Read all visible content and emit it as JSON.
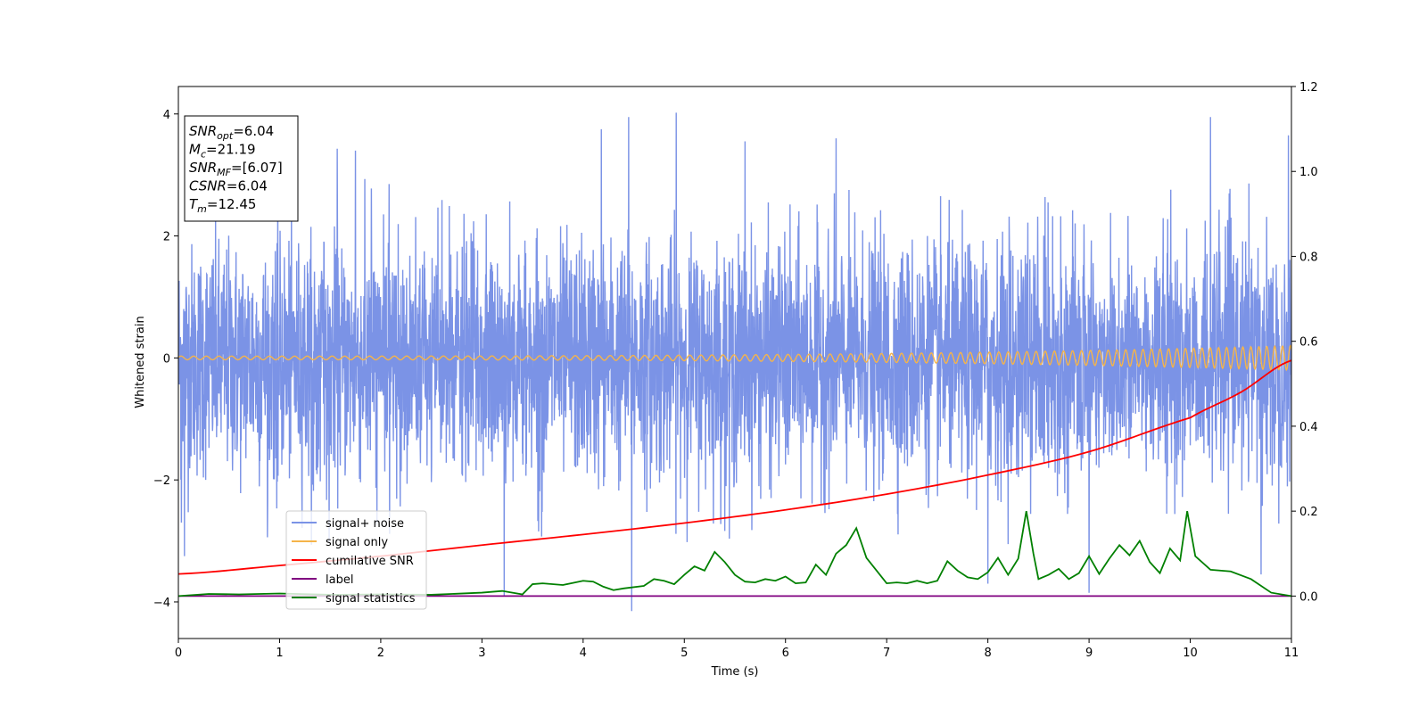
{
  "chart_data": {
    "type": "line",
    "xlabel": "Time (s)",
    "ylabel_left": "Whitened strain",
    "ylabel_right": "",
    "xlim": [
      0,
      11
    ],
    "ylim_left": [
      -4.6,
      4.45
    ],
    "ylim_right": [
      -0.1,
      1.2
    ],
    "x_ticks": [
      0,
      1,
      2,
      3,
      4,
      5,
      6,
      7,
      8,
      9,
      10,
      11
    ],
    "y_ticks_left": [
      -4,
      -2,
      0,
      2,
      4
    ],
    "y_ticks_right": [
      0.0,
      0.2,
      0.4,
      0.6,
      0.8,
      1.0,
      1.2
    ],
    "y_tick_labels_left": [
      "−4",
      "−2",
      "0",
      "2",
      "4"
    ],
    "y_tick_labels_right": [
      "0.0",
      "0.2",
      "0.4",
      "0.6",
      "0.8",
      "1.0",
      "1.2"
    ],
    "grid": false,
    "legend_position": "lower-left",
    "info_box": {
      "position": "top-left",
      "lines": [
        {
          "base": "SNR",
          "sub": "opt",
          "value": "=6.04"
        },
        {
          "base": "M",
          "sub": "c",
          "value": "=21.19"
        },
        {
          "base": "SNR",
          "sub": "MF",
          "value": "=[6.07]"
        },
        {
          "base": "CSNR",
          "sub": "",
          "value": "=6.04"
        },
        {
          "base": "T",
          "sub": "m",
          "value": "=12.45"
        }
      ]
    },
    "series": [
      {
        "name": "signal+ noise",
        "axis": "left",
        "color": "#7b93e6",
        "kind": "noise",
        "sample_rate_hz": 400,
        "typical_range": [
          -2.3,
          2.2
        ],
        "peaks": [
          [
            0.03,
            -2.7
          ],
          [
            0.06,
            -3.25
          ],
          [
            1.57,
            3.43
          ],
          [
            1.75,
            3.4
          ],
          [
            3.22,
            -3.9
          ],
          [
            4.18,
            3.75
          ],
          [
            4.45,
            3.95
          ],
          [
            4.48,
            -4.15
          ],
          [
            4.92,
            4.02
          ],
          [
            5.6,
            3.55
          ],
          [
            6.5,
            3.6
          ],
          [
            8.0,
            -3.7
          ],
          [
            9.0,
            -3.85
          ],
          [
            10.2,
            3.95
          ],
          [
            10.7,
            -3.55
          ],
          [
            10.97,
            3.65
          ]
        ]
      },
      {
        "name": "signal only",
        "axis": "left",
        "color": "#f5b44a",
        "kind": "chirp",
        "amplitude_start": 0.03,
        "amplitude_end": 0.2,
        "cycles_per_second_start": 8,
        "cycles_per_second_end": 13
      },
      {
        "name": "cumilative SNR",
        "axis": "right",
        "color": "#ff0000",
        "x": [
          0,
          1,
          2,
          3,
          4,
          5,
          6,
          7,
          8,
          9,
          10,
          10.5,
          11
        ],
        "values": [
          0.052,
          0.072,
          0.094,
          0.12,
          0.145,
          0.172,
          0.203,
          0.24,
          0.285,
          0.34,
          0.42,
          0.48,
          0.555
        ]
      },
      {
        "name": "label",
        "axis": "right",
        "color": "#800080",
        "x": [
          0,
          11
        ],
        "values": [
          0.0,
          0.0
        ]
      },
      {
        "name": "signal statistics",
        "axis": "right",
        "color": "#008000",
        "x": [
          0,
          0.3,
          0.6,
          1.0,
          1.5,
          2.0,
          2.5,
          3.0,
          3.2,
          3.4,
          3.5,
          3.6,
          3.8,
          4.0,
          4.1,
          4.2,
          4.3,
          4.4,
          4.6,
          4.7,
          4.8,
          4.9,
          5.0,
          5.1,
          5.2,
          5.3,
          5.4,
          5.5,
          5.6,
          5.7,
          5.8,
          5.9,
          6.0,
          6.1,
          6.2,
          6.3,
          6.4,
          6.5,
          6.6,
          6.7,
          6.8,
          6.9,
          7.0,
          7.1,
          7.2,
          7.3,
          7.4,
          7.5,
          7.6,
          7.7,
          7.8,
          7.9,
          8.0,
          8.1,
          8.2,
          8.3,
          8.38,
          8.45,
          8.5,
          8.6,
          8.7,
          8.8,
          8.9,
          9.0,
          9.1,
          9.2,
          9.3,
          9.4,
          9.5,
          9.6,
          9.7,
          9.8,
          9.9,
          9.97,
          10.05,
          10.2,
          10.4,
          10.6,
          10.8,
          11.0
        ],
        "values": [
          0.0,
          0.005,
          0.004,
          0.006,
          0.003,
          0.004,
          0.003,
          0.008,
          0.012,
          0.004,
          0.028,
          0.03,
          0.026,
          0.036,
          0.034,
          0.022,
          0.014,
          0.018,
          0.024,
          0.04,
          0.036,
          0.028,
          0.05,
          0.07,
          0.06,
          0.104,
          0.08,
          0.05,
          0.034,
          0.032,
          0.04,
          0.036,
          0.046,
          0.03,
          0.032,
          0.074,
          0.05,
          0.1,
          0.12,
          0.16,
          0.09,
          0.06,
          0.03,
          0.032,
          0.03,
          0.036,
          0.03,
          0.036,
          0.082,
          0.06,
          0.044,
          0.04,
          0.056,
          0.09,
          0.05,
          0.088,
          0.2,
          0.1,
          0.04,
          0.05,
          0.064,
          0.04,
          0.054,
          0.094,
          0.052,
          0.088,
          0.12,
          0.096,
          0.13,
          0.08,
          0.054,
          0.112,
          0.084,
          0.2,
          0.094,
          0.062,
          0.058,
          0.04,
          0.008,
          0.0
        ]
      }
    ]
  }
}
